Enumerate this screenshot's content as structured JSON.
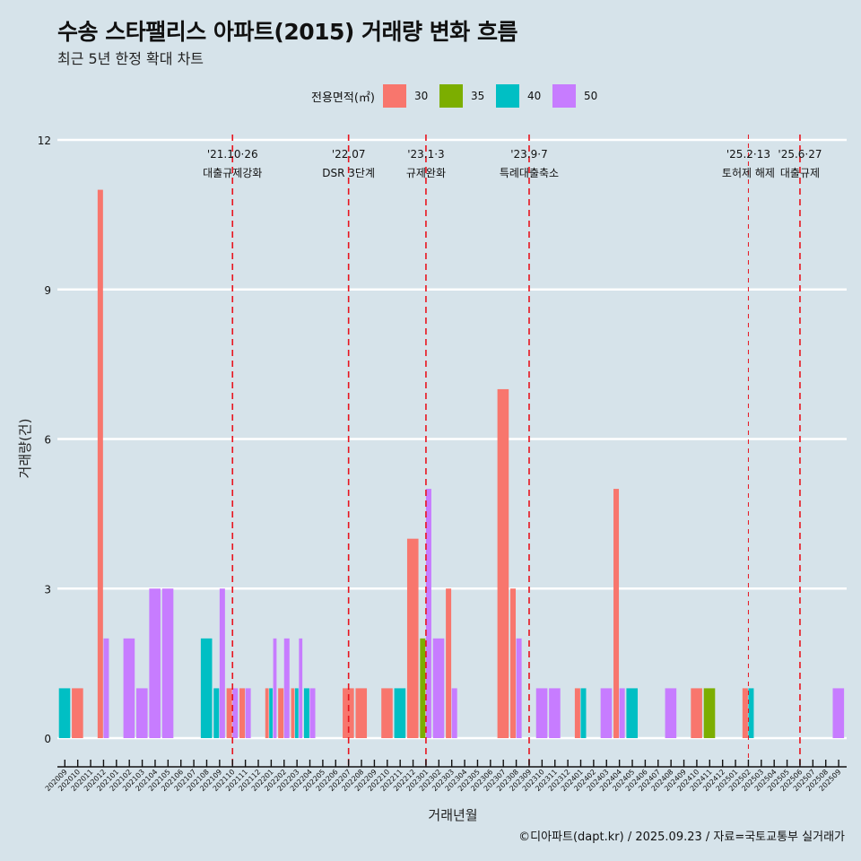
{
  "header": {
    "title": "수송 스타팰리스 아파트(2015) 거래량 변화 흐름",
    "subtitle": "최근 5년 한정 확대 차트"
  },
  "legend": {
    "title": "전용면적(㎡)",
    "items": [
      {
        "label": "30",
        "color": "#F8766D"
      },
      {
        "label": "35",
        "color": "#7CAE00"
      },
      {
        "label": "40",
        "color": "#00BFC4"
      },
      {
        "label": "50",
        "color": "#C77CFF"
      }
    ]
  },
  "footer": {
    "credit": "©디아파트(dapt.kr) / 2025.09.23 / 자료=국토교통부 실거래가"
  },
  "chart_data": {
    "type": "bar",
    "title": "수송 스타팰리스 아파트(2015) 거래량 변화 흐름",
    "subtitle": "최근 5년 한정 확대 차트",
    "xlabel": "거래년월",
    "ylabel": "거래량(건)",
    "ylim": [
      0,
      12
    ],
    "yticks": [
      0,
      3,
      6,
      9,
      12
    ],
    "grid": true,
    "legend_position": "top",
    "categories": [
      "202009",
      "202010",
      "202011",
      "202012",
      "202101",
      "202102",
      "202103",
      "202104",
      "202105",
      "202106",
      "202107",
      "202108",
      "202109",
      "202110",
      "202111",
      "202112",
      "202201",
      "202202",
      "202203",
      "202204",
      "202205",
      "202206",
      "202207",
      "202208",
      "202209",
      "202210",
      "202211",
      "202212",
      "202301",
      "202302",
      "202303",
      "202304",
      "202305",
      "202306",
      "202307",
      "202308",
      "202309",
      "202310",
      "202311",
      "202312",
      "202401",
      "202402",
      "202403",
      "202404",
      "202405",
      "202406",
      "202407",
      "202408",
      "202409",
      "202410",
      "202411",
      "202412",
      "202501",
      "202502",
      "202503",
      "202504",
      "202505",
      "202506",
      "202507",
      "202508",
      "202509"
    ],
    "series": [
      {
        "name": "30",
        "color": "#F8766D",
        "values": [
          0,
          1,
          0,
          11,
          0,
          0,
          0,
          0,
          0,
          0,
          0,
          0,
          0,
          1,
          1,
          0,
          1,
          1,
          1,
          0,
          0,
          0,
          1,
          1,
          0,
          1,
          0,
          4,
          0,
          0,
          3,
          0,
          0,
          0,
          7,
          3,
          0,
          0,
          0,
          0,
          1,
          0,
          0,
          5,
          0,
          0,
          0,
          0,
          0,
          1,
          0,
          0,
          0,
          1,
          0,
          0,
          0,
          0,
          0,
          0,
          0
        ]
      },
      {
        "name": "35",
        "color": "#7CAE00",
        "values": [
          0,
          0,
          0,
          0,
          0,
          0,
          0,
          0,
          0,
          0,
          0,
          0,
          0,
          0,
          0,
          0,
          0,
          0,
          0,
          0,
          0,
          0,
          0,
          0,
          0,
          0,
          0,
          0,
          2,
          0,
          0,
          0,
          0,
          0,
          0,
          0,
          0,
          0,
          0,
          0,
          0,
          0,
          0,
          0,
          0,
          0,
          0,
          0,
          0,
          0,
          1,
          0,
          0,
          0,
          0,
          0,
          0,
          0,
          0,
          0,
          0
        ]
      },
      {
        "name": "40",
        "color": "#00BFC4",
        "values": [
          1,
          0,
          0,
          0,
          0,
          0,
          0,
          0,
          0,
          0,
          0,
          2,
          1,
          0,
          0,
          0,
          1,
          0,
          1,
          1,
          0,
          0,
          0,
          0,
          0,
          0,
          1,
          0,
          0,
          0,
          0,
          0,
          0,
          0,
          0,
          0,
          0,
          0,
          0,
          0,
          1,
          0,
          0,
          0,
          1,
          0,
          0,
          0,
          0,
          0,
          0,
          0,
          0,
          1,
          0,
          0,
          0,
          0,
          0,
          0,
          0
        ]
      },
      {
        "name": "50",
        "color": "#C77CFF",
        "values": [
          0,
          0,
          0,
          2,
          0,
          2,
          1,
          3,
          3,
          0,
          0,
          0,
          3,
          1,
          1,
          0,
          2,
          2,
          2,
          1,
          0,
          0,
          0,
          0,
          0,
          0,
          0,
          0,
          5,
          2,
          1,
          0,
          0,
          0,
          0,
          2,
          0,
          1,
          1,
          0,
          0,
          0,
          1,
          1,
          0,
          0,
          0,
          1,
          0,
          0,
          0,
          0,
          0,
          0,
          0,
          0,
          0,
          0,
          0,
          0,
          1
        ]
      }
    ],
    "annotations": [
      {
        "x": "202110",
        "date": "'21.10·26",
        "label": "대출규제강화",
        "style": "bold"
      },
      {
        "x": "202207",
        "date": "'22.07",
        "label": "DSR 3단계",
        "style": "bold"
      },
      {
        "x": "202301",
        "date": "'23.1·3",
        "label": "규제완화",
        "style": "bold"
      },
      {
        "x": "202309",
        "date": "'23.9·7",
        "label": "특례대출축소",
        "style": "bold"
      },
      {
        "x": "202502",
        "date": "'25.2·13",
        "label": "토허제 해제",
        "style": "thin"
      },
      {
        "x": "202506",
        "date": "'25.6·27",
        "label": "대출규제",
        "style": "bold"
      }
    ],
    "annotation_color": "#E8141E"
  }
}
